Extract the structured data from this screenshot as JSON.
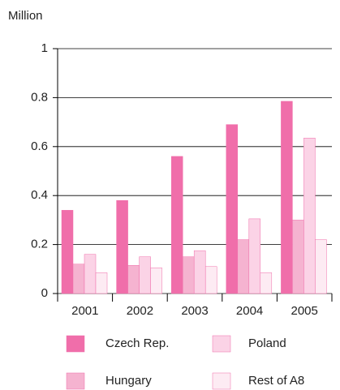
{
  "chart_data": {
    "type": "bar",
    "y_label": "Million",
    "categories": [
      "2001",
      "2002",
      "2003",
      "2004",
      "2005"
    ],
    "series": [
      {
        "name": "Czech Rep.",
        "color": "#f06eaa",
        "values": [
          0.34,
          0.38,
          0.56,
          0.69,
          0.785
        ]
      },
      {
        "name": "Hungary",
        "color": "#f5b3d0",
        "values": [
          0.12,
          0.115,
          0.15,
          0.22,
          0.3
        ]
      },
      {
        "name": "Poland",
        "color": "#fbd3e6",
        "values": [
          0.16,
          0.15,
          0.175,
          0.305,
          0.635
        ]
      },
      {
        "name": "Rest of A8",
        "color": "#fdebf3",
        "values": [
          0.085,
          0.105,
          0.11,
          0.085,
          0.22
        ]
      }
    ],
    "ylim": [
      0,
      1
    ],
    "yticks": [
      0,
      0.2,
      0.4,
      0.6,
      0.8,
      1
    ],
    "grid": true
  }
}
